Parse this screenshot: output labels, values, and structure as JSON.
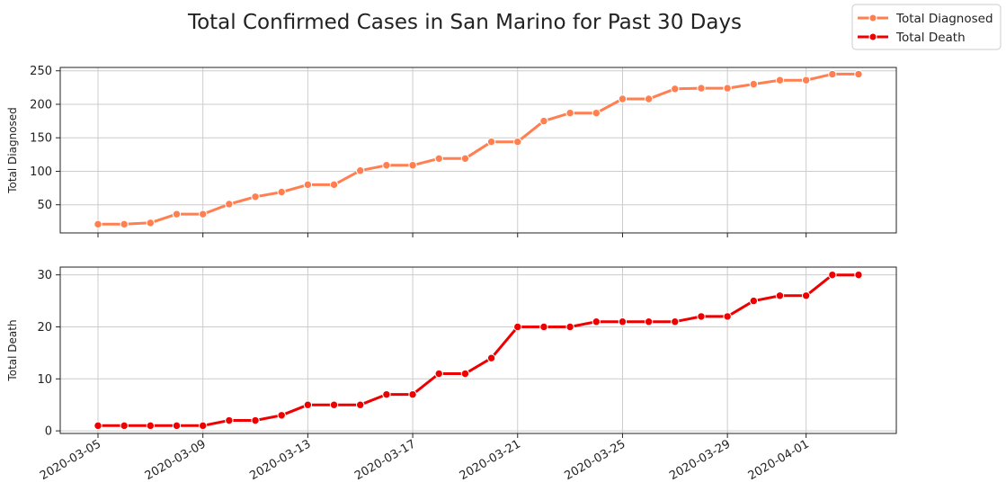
{
  "figure": {
    "title": "Total Confirmed Cases in San Marino for Past 30 Days"
  },
  "legend": {
    "placement": "top-right",
    "items": [
      {
        "label": "Total Diagnosed",
        "color": "#FF7F50"
      },
      {
        "label": "Total Death",
        "color": "#EE0000"
      }
    ]
  },
  "chart_data": [
    {
      "type": "line",
      "ylabel": "Total Diagnosed",
      "xlabel": "",
      "ylim": [
        8,
        255
      ],
      "yticks": [
        50,
        100,
        150,
        200,
        250
      ],
      "grid": true,
      "show_x_tick_labels": false,
      "x": [
        "2020-03-05",
        "2020-03-06",
        "2020-03-07",
        "2020-03-08",
        "2020-03-09",
        "2020-03-10",
        "2020-03-11",
        "2020-03-12",
        "2020-03-13",
        "2020-03-14",
        "2020-03-15",
        "2020-03-16",
        "2020-03-17",
        "2020-03-18",
        "2020-03-19",
        "2020-03-20",
        "2020-03-21",
        "2020-03-22",
        "2020-03-23",
        "2020-03-24",
        "2020-03-25",
        "2020-03-26",
        "2020-03-27",
        "2020-03-28",
        "2020-03-29",
        "2020-03-30",
        "2020-03-31",
        "2020-04-01",
        "2020-04-02",
        "2020-04-03"
      ],
      "xticks": [
        "2020-03-05",
        "2020-03-09",
        "2020-03-13",
        "2020-03-17",
        "2020-03-21",
        "2020-03-25",
        "2020-03-29",
        "2020-04-01"
      ],
      "series": [
        {
          "name": "Total Diagnosed",
          "color": "#FF7F50",
          "values": [
            21,
            21,
            23,
            36,
            36,
            51,
            62,
            69,
            80,
            80,
            101,
            109,
            109,
            119,
            119,
            144,
            144,
            175,
            187,
            187,
            208,
            208,
            223,
            224,
            224,
            230,
            236,
            236,
            245,
            245
          ]
        }
      ]
    },
    {
      "type": "line",
      "ylabel": "Total Death",
      "xlabel": "",
      "ylim": [
        -0.5,
        31.5
      ],
      "yticks": [
        0,
        10,
        20,
        30
      ],
      "grid": true,
      "show_x_tick_labels": true,
      "x": [
        "2020-03-05",
        "2020-03-06",
        "2020-03-07",
        "2020-03-08",
        "2020-03-09",
        "2020-03-10",
        "2020-03-11",
        "2020-03-12",
        "2020-03-13",
        "2020-03-14",
        "2020-03-15",
        "2020-03-16",
        "2020-03-17",
        "2020-03-18",
        "2020-03-19",
        "2020-03-20",
        "2020-03-21",
        "2020-03-22",
        "2020-03-23",
        "2020-03-24",
        "2020-03-25",
        "2020-03-26",
        "2020-03-27",
        "2020-03-28",
        "2020-03-29",
        "2020-03-30",
        "2020-03-31",
        "2020-04-01",
        "2020-04-02",
        "2020-04-03"
      ],
      "xticks": [
        "2020-03-05",
        "2020-03-09",
        "2020-03-13",
        "2020-03-17",
        "2020-03-21",
        "2020-03-25",
        "2020-03-29",
        "2020-04-01"
      ],
      "series": [
        {
          "name": "Total Death",
          "color": "#EE0000",
          "values": [
            1,
            1,
            1,
            1,
            1,
            2,
            2,
            3,
            5,
            5,
            5,
            7,
            7,
            11,
            11,
            14,
            20,
            20,
            20,
            21,
            21,
            21,
            21,
            22,
            22,
            25,
            26,
            26,
            30,
            30
          ]
        }
      ]
    }
  ]
}
